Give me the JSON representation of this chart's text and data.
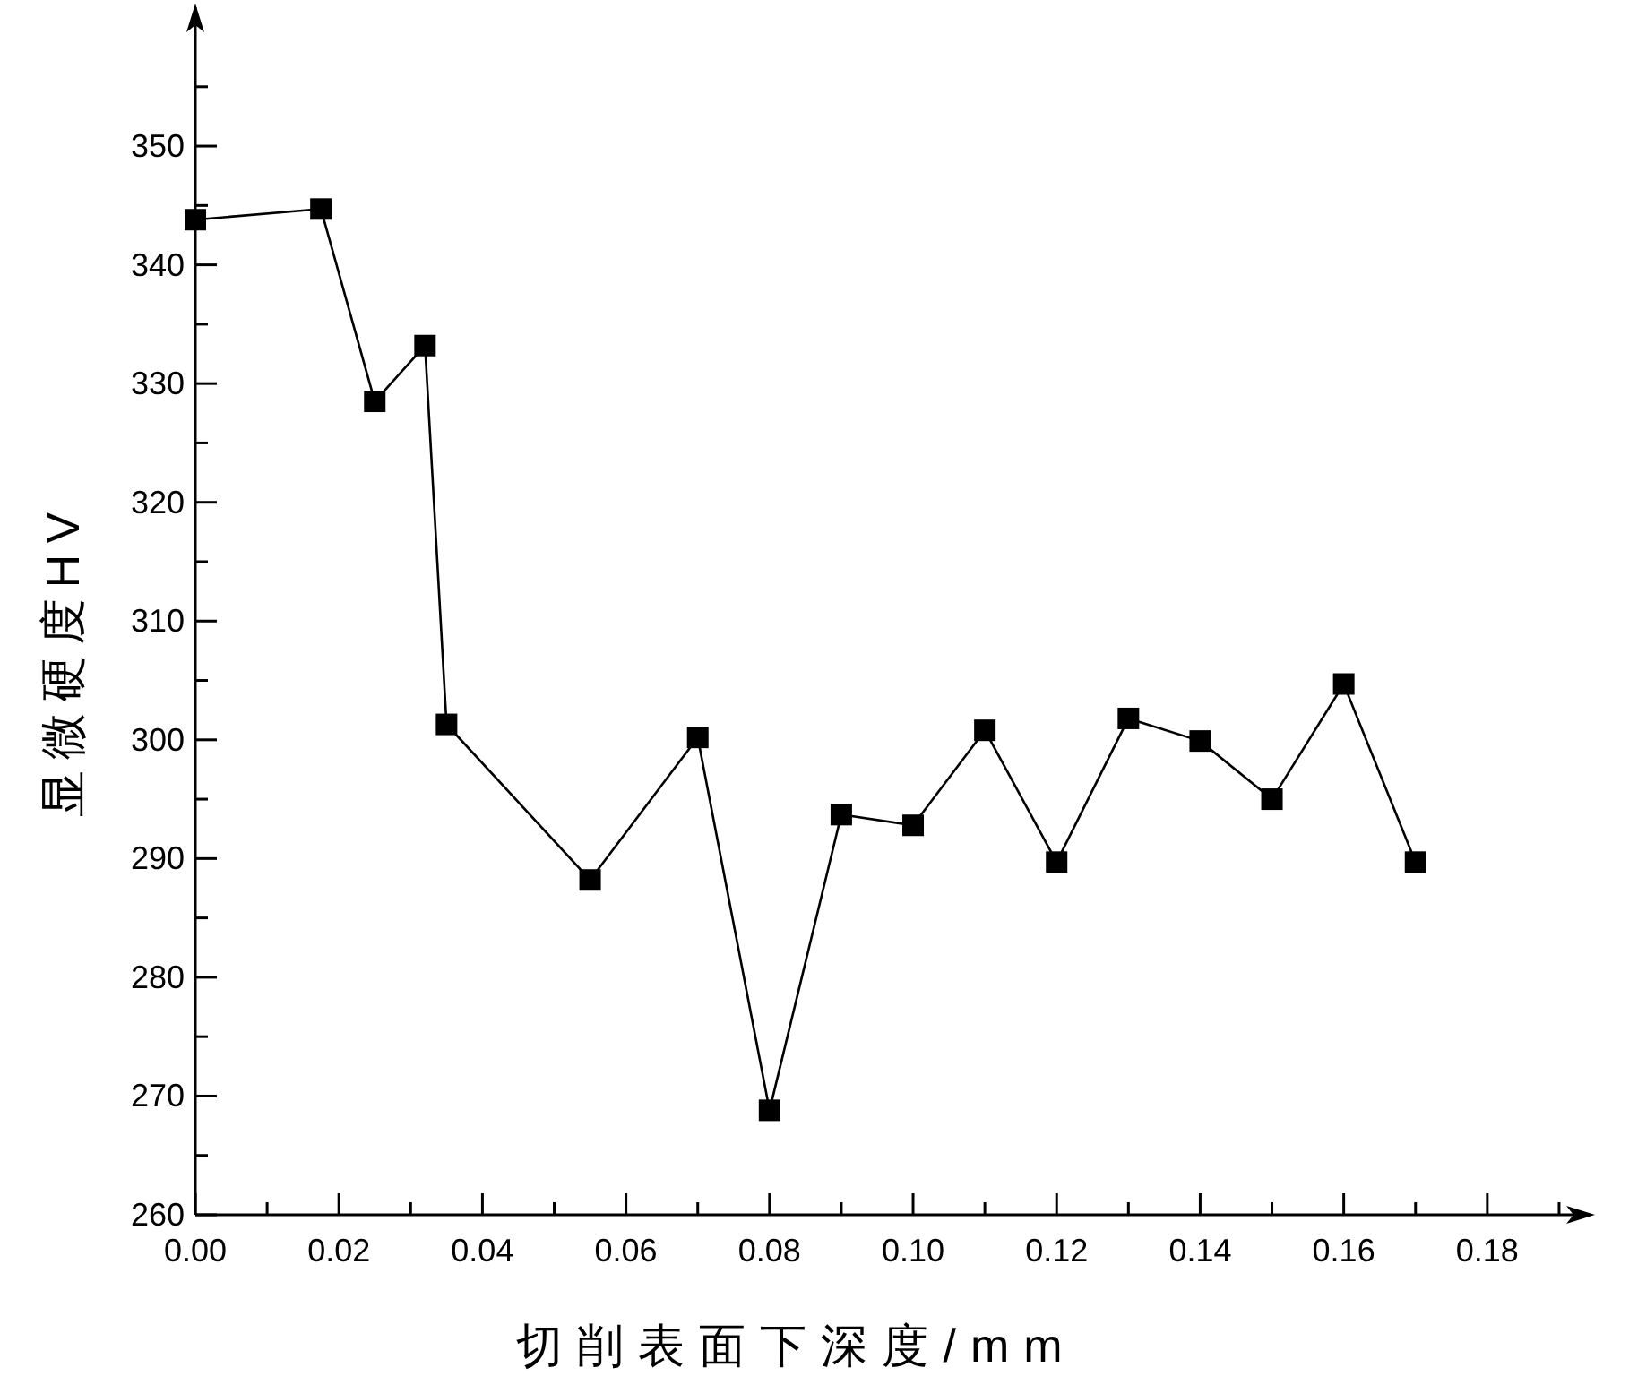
{
  "chart_data": {
    "type": "line",
    "xlabel": "切削表面下深度/mm",
    "ylabel": "显微硬度HV",
    "x": [
      0,
      0.0175,
      0.025,
      0.032,
      0.035,
      0.055,
      0.07,
      0.08,
      0.09,
      0.1,
      0.11,
      0.12,
      0.13,
      0.14,
      0.15,
      0.16,
      0.17
    ],
    "series": [
      {
        "color": "#000000",
        "values": [
          343.8,
          344.7,
          328.5,
          333.2,
          301.3,
          288.2,
          300.2,
          268.8,
          293.7,
          292.8,
          300.8,
          289.7,
          301.8,
          299.9,
          295.0,
          304.7,
          289.7
        ]
      }
    ],
    "xlim": [
      0,
      0.195
    ],
    "ylim": [
      260,
      362
    ],
    "xticks": [
      {
        "value": 0,
        "label": "0.00"
      },
      {
        "value": 0.02,
        "label": "0.02"
      },
      {
        "value": 0.04,
        "label": "0.04"
      },
      {
        "value": 0.06,
        "label": "0.06"
      },
      {
        "value": 0.08,
        "label": "0.08"
      },
      {
        "value": 0.1,
        "label": "0.10"
      },
      {
        "value": 0.12,
        "label": "0.12"
      },
      {
        "value": 0.14,
        "label": "0.14"
      },
      {
        "value": 0.16,
        "label": "0.16"
      },
      {
        "value": 0.18,
        "label": "0.18"
      }
    ],
    "yticks": [
      260,
      270,
      280,
      290,
      300,
      310,
      320,
      330,
      340,
      350
    ],
    "marker": "square",
    "grid": false
  }
}
